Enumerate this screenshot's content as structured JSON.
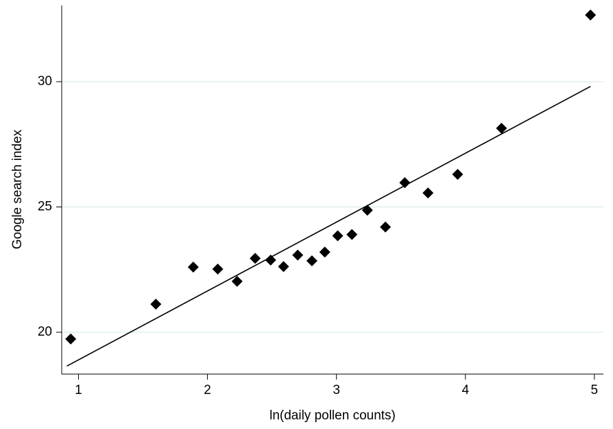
{
  "chart_data": {
    "type": "scatter",
    "x_label": "ln(daily pollen counts)",
    "y_label": "Google search index",
    "xlim": [
      0.87,
      5.07
    ],
    "xticks": [
      1,
      2,
      3,
      4,
      5
    ],
    "ylim": [
      18.33,
      33.04
    ],
    "yticks": [
      20,
      25,
      30
    ],
    "grid": true,
    "series": [
      {
        "color": "#000000",
        "marker": "diamond",
        "x": [
          0.94,
          1.6,
          1.89,
          2.08,
          2.23,
          2.37,
          2.49,
          2.59,
          2.7,
          2.81,
          2.91,
          3.01,
          3.12,
          3.24,
          3.38,
          3.53,
          3.71,
          3.94,
          4.28,
          4.97
        ],
        "values": [
          19.73,
          21.12,
          22.6,
          22.52,
          22.03,
          22.95,
          22.88,
          22.62,
          23.08,
          22.85,
          23.2,
          23.85,
          23.9,
          24.87,
          24.2,
          25.97,
          25.56,
          26.3,
          28.14,
          32.66
        ]
      },
      {
        "color": "#000000",
        "line": true,
        "x": [
          0.91,
          4.97
        ],
        "values": [
          18.65,
          29.81
        ]
      }
    ]
  }
}
